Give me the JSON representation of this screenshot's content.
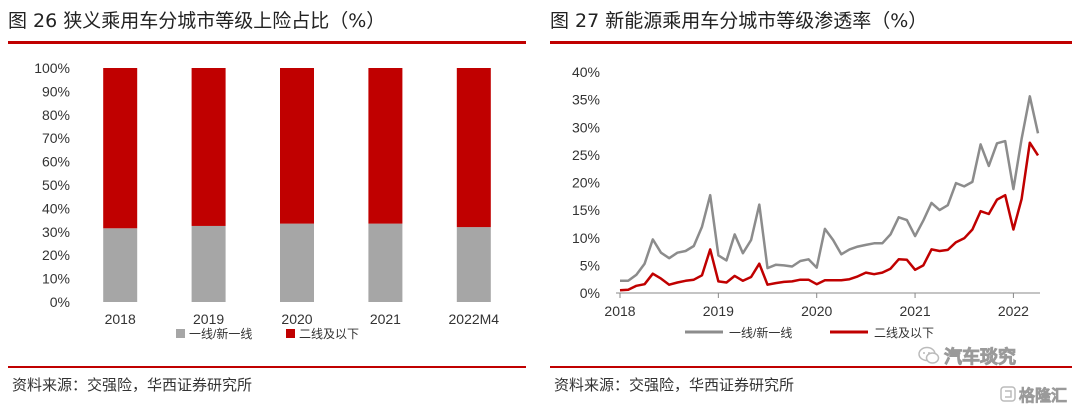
{
  "left_panel": {
    "title": "图 26 狭义乘用车分城市等级上险占比（%）",
    "source": "资料来源：交强险，华西证券研究所"
  },
  "right_panel": {
    "title": "图 27 新能源乘用车分城市等级渗透率（%）",
    "source": "资料来源：交强险，华西证券研究所"
  },
  "watermark": {
    "account": "汽车琰究",
    "brand": "格隆汇"
  },
  "colors": {
    "accent": "#c00000",
    "grey": "#a6a6a6",
    "line_grey": "#8c8c8c",
    "red": "#c00000"
  },
  "chart_data": [
    {
      "type": "bar",
      "stacked": true,
      "categories": [
        "2018",
        "2019",
        "2020",
        "2021",
        "2022M4"
      ],
      "series": [
        {
          "name": "一线/新一线",
          "values": [
            31.5,
            32.5,
            33.5,
            33.5,
            32
          ]
        },
        {
          "name": "二线及以下",
          "values": [
            68.5,
            67.5,
            66.5,
            66.5,
            68
          ]
        }
      ],
      "ylim": [
        0,
        100
      ],
      "yticks": [
        "0%",
        "10%",
        "20%",
        "30%",
        "40%",
        "50%",
        "60%",
        "70%",
        "80%",
        "90%",
        "100%"
      ],
      "legend": "bottom"
    },
    {
      "type": "line",
      "x": [
        "2018-01",
        "2018-02",
        "2018-03",
        "2018-04",
        "2018-05",
        "2018-06",
        "2018-07",
        "2018-08",
        "2018-09",
        "2018-10",
        "2018-11",
        "2018-12",
        "2019-01",
        "2019-02",
        "2019-03",
        "2019-04",
        "2019-05",
        "2019-06",
        "2019-07",
        "2019-08",
        "2019-09",
        "2019-10",
        "2019-11",
        "2019-12",
        "2020-01",
        "2020-02",
        "2020-03",
        "2020-04",
        "2020-05",
        "2020-06",
        "2020-07",
        "2020-08",
        "2020-09",
        "2020-10",
        "2020-11",
        "2020-12",
        "2021-01",
        "2021-02",
        "2021-03",
        "2021-04",
        "2021-05",
        "2021-06",
        "2021-07",
        "2021-08",
        "2021-09",
        "2021-10",
        "2021-11",
        "2021-12",
        "2022-01",
        "2022-02",
        "2022-03",
        "2022-04"
      ],
      "xticks": [
        "2018",
        "2019",
        "2020",
        "2021",
        "2022"
      ],
      "series": [
        {
          "name": "一线/新一线",
          "values": [
            2.2,
            2.2,
            3.3,
            5.3,
            9.7,
            7.3,
            6.3,
            7.3,
            7.6,
            8.5,
            12.0,
            17.7,
            6.8,
            5.9,
            10.6,
            7.2,
            9.6,
            16.0,
            4.5,
            5.1,
            5.0,
            4.8,
            5.8,
            6.1,
            4.6,
            11.6,
            9.6,
            7.0,
            7.9,
            8.4,
            8.7,
            9.0,
            9.0,
            10.6,
            13.7,
            13.2,
            10.3,
            13.1,
            16.3,
            15.0,
            15.9,
            19.9,
            19.3,
            20.1,
            26.9,
            23.0,
            27.1,
            27.5,
            18.8,
            27.9,
            35.6,
            28.9
          ]
        },
        {
          "name": "二线及以下",
          "values": [
            0.5,
            0.6,
            1.3,
            1.6,
            3.5,
            2.6,
            1.5,
            1.9,
            2.2,
            2.4,
            3.2,
            7.9,
            2.1,
            1.9,
            3.1,
            2.2,
            2.9,
            5.3,
            1.5,
            1.8,
            2.0,
            2.1,
            2.4,
            2.4,
            1.6,
            2.3,
            2.3,
            2.3,
            2.5,
            3.0,
            3.7,
            3.4,
            3.7,
            4.4,
            6.1,
            6.0,
            4.2,
            5.0,
            7.9,
            7.6,
            7.8,
            9.2,
            9.9,
            11.5,
            14.8,
            14.3,
            16.9,
            17.7,
            11.5,
            17.0,
            27.2,
            24.9
          ]
        }
      ],
      "ylim": [
        0,
        40
      ],
      "yticks": [
        "0%",
        "5%",
        "10%",
        "15%",
        "20%",
        "25%",
        "30%",
        "35%",
        "40%"
      ],
      "legend": "bottom"
    }
  ]
}
